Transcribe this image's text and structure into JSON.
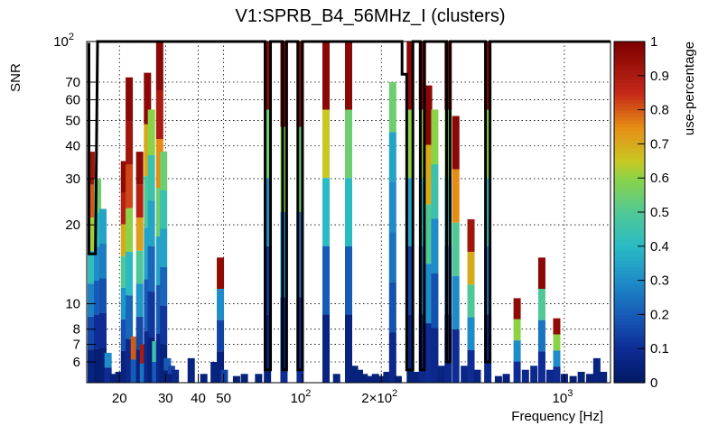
{
  "chart_data": {
    "type": "heatmap",
    "title": "V1:SPRB_B4_56MHz_I (clusters)",
    "xlabel": "Frequency [Hz]",
    "ylabel": "SNR",
    "zlabel": "use-percentage",
    "x_scale": "log",
    "y_scale": "log",
    "xlim": [
      15,
      1500
    ],
    "ylim": [
      5,
      100
    ],
    "zlim": [
      0,
      1
    ],
    "grid": true,
    "x_ticks": [
      {
        "v": 20,
        "label": "20"
      },
      {
        "v": 30,
        "label": "30"
      },
      {
        "v": 40,
        "label": "40"
      },
      {
        "v": 50,
        "label": "50"
      },
      {
        "v": 100,
        "label": "10",
        "sup": "2"
      },
      {
        "v": 200,
        "label": "2×10",
        "sup": "2"
      },
      {
        "v": 1000,
        "label": "10",
        "sup": "3"
      }
    ],
    "y_ticks": [
      {
        "v": 6,
        "label": "6"
      },
      {
        "v": 7,
        "label": "7"
      },
      {
        "v": 8,
        "label": "8"
      },
      {
        "v": 10,
        "label": "10"
      },
      {
        "v": 20,
        "label": "20"
      },
      {
        "v": 30,
        "label": "30"
      },
      {
        "v": 40,
        "label": "40"
      },
      {
        "v": 50,
        "label": "50"
      },
      {
        "v": 60,
        "label": "60"
      },
      {
        "v": 70,
        "label": "70"
      },
      {
        "v": 100,
        "label": "10",
        "sup": "2"
      }
    ],
    "z_ticks": [
      {
        "v": 0,
        "label": "0"
      },
      {
        "v": 0.1,
        "label": "0.1"
      },
      {
        "v": 0.2,
        "label": "0.2"
      },
      {
        "v": 0.3,
        "label": "0.3"
      },
      {
        "v": 0.4,
        "label": "0.4"
      },
      {
        "v": 0.5,
        "label": "0.5"
      },
      {
        "v": 0.6,
        "label": "0.6"
      },
      {
        "v": 0.7,
        "label": "0.7"
      },
      {
        "v": 0.8,
        "label": "0.8"
      },
      {
        "v": 0.9,
        "label": "0.9"
      },
      {
        "v": 1,
        "label": "1"
      }
    ],
    "columns": [
      {
        "f": 15.6,
        "h": 38,
        "p": [
          0.93,
          0.8,
          0.62,
          0.42,
          0.28,
          0.16,
          0.06
        ]
      },
      {
        "f": 16.5,
        "h": 30,
        "p": [
          0.55,
          0.42,
          0.3,
          0.2,
          0.1,
          0.03
        ]
      },
      {
        "f": 17.3,
        "h": 23,
        "p": [
          0.35,
          0.27,
          0.18,
          0.1,
          0.04
        ]
      },
      {
        "f": 18.1,
        "h": 6.5,
        "p": [
          0.3,
          0.1
        ]
      },
      {
        "f": 19.0,
        "h": 5.4,
        "p": [
          0.05
        ]
      },
      {
        "f": 19.9,
        "h": 5.5,
        "p": [
          0.05
        ]
      },
      {
        "f": 20.9,
        "h": 35,
        "p": [
          0.96,
          0.88,
          0.7,
          0.5,
          0.32,
          0.18,
          0.06
        ]
      },
      {
        "f": 21.8,
        "h": 73,
        "p": [
          0.97,
          0.92,
          0.82,
          0.6,
          0.4,
          0.22,
          0.08
        ]
      },
      {
        "f": 22.8,
        "h": 7.5,
        "p": [
          0.8,
          0.2
        ]
      },
      {
        "f": 23.9,
        "h": 38,
        "p": [
          0.96,
          0.88,
          0.72,
          0.5,
          0.32,
          0.16,
          0.06
        ]
      },
      {
        "f": 24.7,
        "h": 7,
        "p": [
          0.9,
          0.25
        ]
      },
      {
        "f": 25.6,
        "h": 76,
        "p": [
          0.97,
          0.7,
          0.5,
          0.35,
          0.2,
          0.08
        ]
      },
      {
        "f": 26.5,
        "h": 55,
        "p": [
          0.6,
          0.45,
          0.35,
          0.22,
          0.12,
          0.05
        ]
      },
      {
        "f": 27.5,
        "h": 7.2,
        "p": [
          0.45,
          0.2
        ]
      },
      {
        "f": 28.5,
        "h": 100,
        "p": [
          0.97,
          0.9,
          0.75,
          0.55,
          0.35,
          0.2,
          0.08
        ]
      },
      {
        "f": 29.5,
        "h": 38,
        "p": [
          0.55,
          0.45,
          0.35,
          0.22,
          0.12,
          0.05
        ]
      },
      {
        "f": 30.5,
        "h": 6.2,
        "p": [
          0.2,
          0.06
        ]
      },
      {
        "f": 31.6,
        "h": 5.8,
        "p": [
          0.15,
          0.04
        ]
      },
      {
        "f": 32.7,
        "h": 5.6,
        "p": [
          0.08
        ]
      },
      {
        "f": 37.6,
        "h": 6.2,
        "p": [
          0.06
        ]
      },
      {
        "f": 42.0,
        "h": 5.4,
        "p": [
          0.05
        ]
      },
      {
        "f": 46.0,
        "h": 6.0,
        "p": [
          0.06
        ]
      },
      {
        "f": 48.6,
        "h": 15,
        "p": [
          0.96,
          0.3,
          0.15,
          0.05
        ]
      },
      {
        "f": 50.3,
        "h": 5.6,
        "p": [
          0.15
        ]
      },
      {
        "f": 56.0,
        "h": 5.3,
        "p": [
          0.04
        ]
      },
      {
        "f": 60.0,
        "h": 5.4,
        "p": [
          0.05
        ]
      },
      {
        "f": 68.0,
        "h": 5.4,
        "p": [
          0.05
        ]
      },
      {
        "f": 73.5,
        "h": 100,
        "p": [
          0.97,
          0.55,
          0.3,
          0.12,
          0.05
        ]
      },
      {
        "f": 85.0,
        "h": 100,
        "p": [
          0.97,
          0.6,
          0.3,
          0.1
        ]
      },
      {
        "f": 98.0,
        "h": 100,
        "p": [
          0.97,
          0.55,
          0.25,
          0.1
        ]
      },
      {
        "f": 123.0,
        "h": 100,
        "p": [
          0.97,
          0.65,
          0.4,
          0.2,
          0.06
        ]
      },
      {
        "f": 135.0,
        "h": 5.4,
        "p": [
          0.06
        ]
      },
      {
        "f": 150.0,
        "h": 100,
        "p": [
          0.97,
          0.55,
          0.4,
          0.2,
          0.06
        ]
      },
      {
        "f": 158.0,
        "h": 5.8,
        "p": [
          0.05
        ]
      },
      {
        "f": 165.0,
        "h": 5.6,
        "p": [
          0.05
        ]
      },
      {
        "f": 172.0,
        "h": 5.4,
        "p": [
          0.05
        ]
      },
      {
        "f": 181.0,
        "h": 5.3,
        "p": [
          0.05
        ]
      },
      {
        "f": 190.0,
        "h": 5.4,
        "p": [
          0.05
        ]
      },
      {
        "f": 200.0,
        "h": 5.3,
        "p": [
          0.05
        ]
      },
      {
        "f": 210.0,
        "h": 5.5,
        "p": [
          0.05
        ]
      },
      {
        "f": 221.0,
        "h": 70,
        "p": [
          0.55,
          0.35,
          0.3,
          0.25,
          0.18,
          0.08
        ]
      },
      {
        "f": 232.0,
        "h": 5.3,
        "p": [
          0.04
        ]
      },
      {
        "f": 258.0,
        "h": 100,
        "p": [
          0.97,
          0.6,
          0.35,
          0.15,
          0.05
        ]
      },
      {
        "f": 270.0,
        "h": 5.5,
        "p": [
          0.05
        ]
      },
      {
        "f": 287.0,
        "h": 100,
        "p": [
          0.97,
          0.6,
          0.4,
          0.25,
          0.08
        ]
      },
      {
        "f": 303.0,
        "h": 68,
        "p": [
          0.97,
          0.7,
          0.5,
          0.3,
          0.1
        ]
      },
      {
        "f": 320.0,
        "h": 55,
        "p": [
          0.6,
          0.45,
          0.3,
          0.18,
          0.08
        ]
      },
      {
        "f": 339.0,
        "h": 5.8,
        "p": [
          0.06
        ]
      },
      {
        "f": 360.0,
        "h": 100,
        "p": [
          0.97,
          0.6,
          0.4,
          0.25,
          0.08
        ]
      },
      {
        "f": 385.0,
        "h": 52,
        "p": [
          0.97,
          0.75,
          0.5,
          0.3,
          0.1
        ]
      },
      {
        "f": 415.0,
        "h": 5.8,
        "p": [
          0.07
        ]
      },
      {
        "f": 440.0,
        "h": 21,
        "p": [
          0.92,
          0.7,
          0.5,
          0.3,
          0.1
        ]
      },
      {
        "f": 465.0,
        "h": 5.6,
        "p": [
          0.06
        ]
      },
      {
        "f": 510.0,
        "h": 100,
        "p": [
          0.97,
          0.6,
          0.4,
          0.25,
          0.08
        ]
      },
      {
        "f": 560.0,
        "h": 5.3,
        "p": [
          0.05
        ]
      },
      {
        "f": 600.0,
        "h": 5.4,
        "p": [
          0.05
        ]
      },
      {
        "f": 660.0,
        "h": 10.5,
        "p": [
          0.96,
          0.6,
          0.3,
          0.1
        ]
      },
      {
        "f": 710.0,
        "h": 5.6,
        "p": [
          0.08
        ]
      },
      {
        "f": 765.0,
        "h": 5.8,
        "p": [
          0.08
        ]
      },
      {
        "f": 820.0,
        "h": 15,
        "p": [
          0.97,
          0.5,
          0.25,
          0.1
        ]
      },
      {
        "f": 880.0,
        "h": 5.6,
        "p": [
          0.08
        ]
      },
      {
        "f": 935.0,
        "h": 8.8,
        "p": [
          0.96,
          0.6,
          0.3,
          0.1
        ]
      },
      {
        "f": 1000.0,
        "h": 5.4,
        "p": [
          0.05
        ]
      },
      {
        "f": 1080.0,
        "h": 5.3,
        "p": [
          0.04
        ]
      },
      {
        "f": 1160.0,
        "h": 5.5,
        "p": [
          0.05
        ]
      },
      {
        "f": 1250.0,
        "h": 5.4,
        "p": [
          0.05
        ]
      },
      {
        "f": 1330.0,
        "h": 6.2,
        "p": [
          0.06
        ]
      },
      {
        "f": 1410.0,
        "h": 5.5,
        "p": [
          0.05
        ]
      }
    ],
    "cluster_outlines": [
      {
        "f1": 15.3,
        "f2": 16.2,
        "snr_min": 15.5
      },
      {
        "f1": 16.5,
        "f2": 72.0,
        "snr_min": 100
      },
      {
        "f1": 72.0,
        "f2": 75.5,
        "snr_min": 5.6
      },
      {
        "f1": 75.5,
        "f2": 84.0,
        "snr_min": 100
      },
      {
        "f1": 84.0,
        "f2": 87.0,
        "snr_min": 5.6
      },
      {
        "f1": 87.0,
        "f2": 96.0,
        "snr_min": 100
      },
      {
        "f1": 96.0,
        "f2": 100.0,
        "snr_min": 5.6
      },
      {
        "f1": 100.0,
        "f2": 240.0,
        "snr_min": 100
      },
      {
        "f1": 240.0,
        "f2": 250.0,
        "snr_min": 75
      },
      {
        "f1": 250.0,
        "f2": 264.0,
        "snr_min": 5.6
      },
      {
        "f1": 264.0,
        "f2": 282.0,
        "snr_min": 100
      },
      {
        "f1": 282.0,
        "f2": 292.0,
        "snr_min": 5.6
      },
      {
        "f1": 292.0,
        "f2": 355.0,
        "snr_min": 100
      },
      {
        "f1": 355.0,
        "f2": 366.0,
        "snr_min": 6.0
      },
      {
        "f1": 366.0,
        "f2": 500.0,
        "snr_min": 100
      },
      {
        "f1": 500.0,
        "f2": 520.0,
        "snr_min": 6.0
      },
      {
        "f1": 520.0,
        "f2": 1500.0,
        "snr_min": 100
      }
    ]
  }
}
